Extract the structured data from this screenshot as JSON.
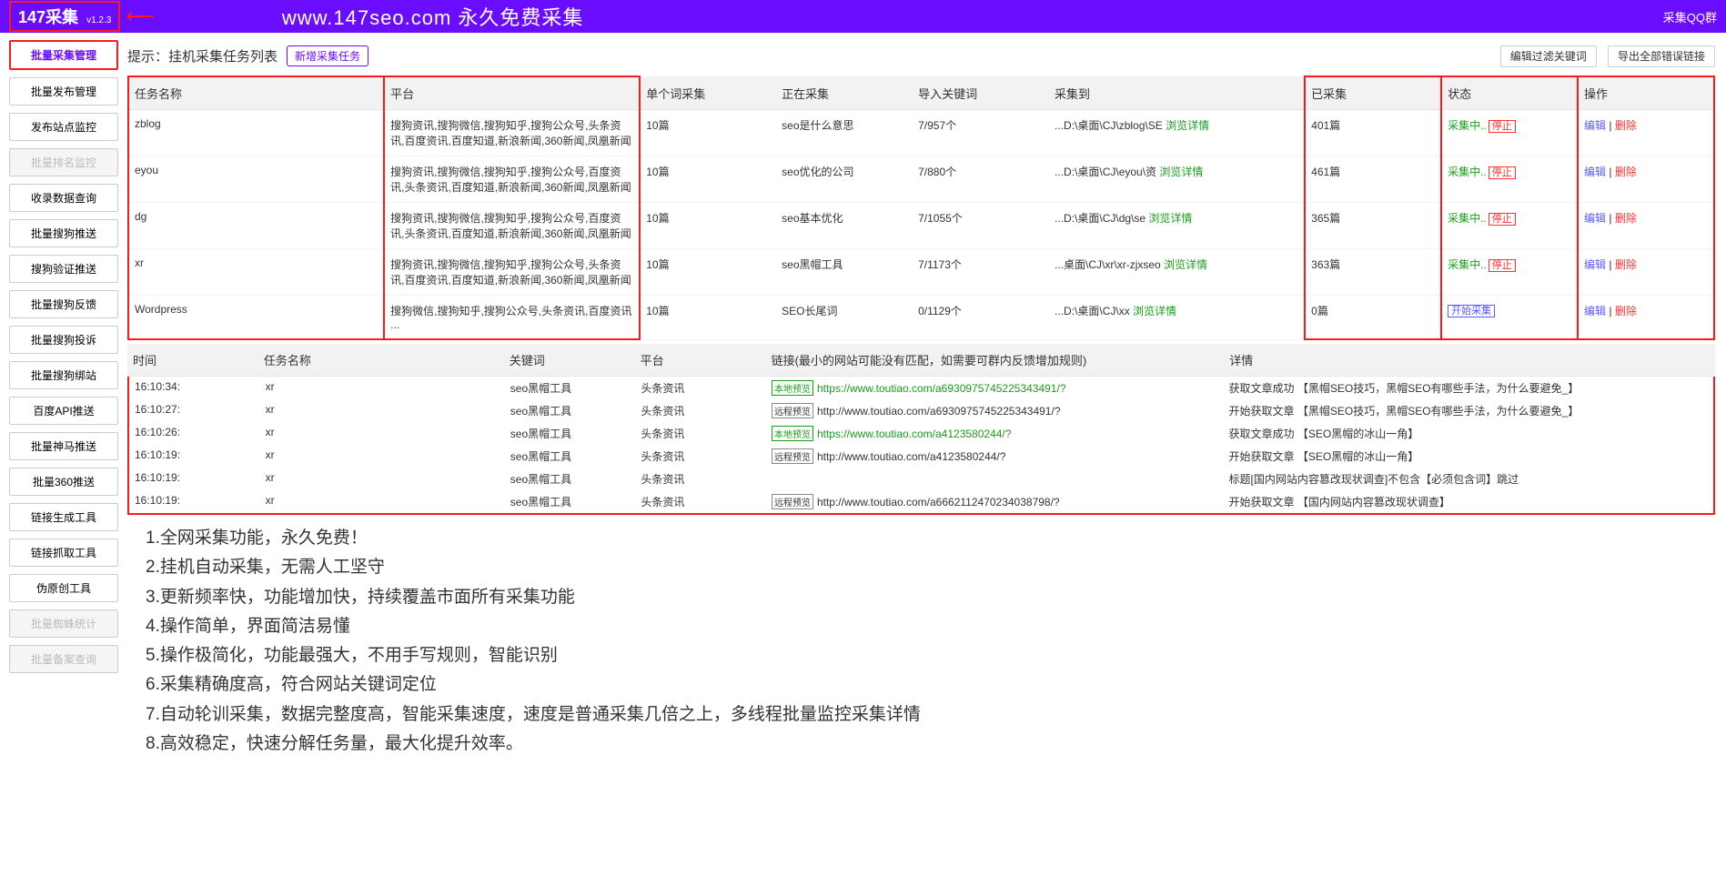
{
  "header": {
    "logo": "147采集",
    "version": "v1.2.3",
    "title": "www.147seo.com   永久免费采集",
    "qq": "采集QQ群"
  },
  "sidebar": [
    {
      "label": "批量采集管理",
      "cls": "active"
    },
    {
      "label": "批量发布管理",
      "cls": ""
    },
    {
      "label": "发布站点监控",
      "cls": ""
    },
    {
      "label": "批量排名监控",
      "cls": "disabled"
    },
    {
      "label": "收录数据查询",
      "cls": ""
    },
    {
      "label": "批量搜狗推送",
      "cls": ""
    },
    {
      "label": "搜狗验证推送",
      "cls": ""
    },
    {
      "label": "批量搜狗反馈",
      "cls": ""
    },
    {
      "label": "批量搜狗投诉",
      "cls": ""
    },
    {
      "label": "批量搜狗绑站",
      "cls": ""
    },
    {
      "label": "百度API推送",
      "cls": ""
    },
    {
      "label": "批量神马推送",
      "cls": ""
    },
    {
      "label": "批量360推送",
      "cls": ""
    },
    {
      "label": "链接生成工具",
      "cls": ""
    },
    {
      "label": "链接抓取工具",
      "cls": ""
    },
    {
      "label": "伪原创工具",
      "cls": ""
    },
    {
      "label": "批量蜘蛛统计",
      "cls": "disabled"
    },
    {
      "label": "批量备案查询",
      "cls": "disabled"
    }
  ],
  "hint": {
    "text": "提示：挂机采集任务列表",
    "newBtn": "新增采集任务",
    "filterBtn": "编辑过滤关键词",
    "exportBtn": "导出全部错误链接"
  },
  "taskCols": [
    "任务名称",
    "平台",
    "单个词采集",
    "正在采集",
    "导入关键词",
    "采集到",
    "已采集",
    "状态",
    "操作"
  ],
  "tasks": [
    {
      "name": "zblog",
      "plat": "搜狗资讯,搜狗微信,搜狗知乎,搜狗公众号,头条资讯,百度资讯,百度知道,新浪新闻,360新闻,凤凰新闻",
      "single": "10篇",
      "now": "seo是什么意思",
      "import": "7/957个",
      "to": "...D:\\桌面\\CJ\\zblog\\SE",
      "toLink": "浏览详情",
      "done": "401篇",
      "stat": "采集中..",
      "statBtn": "停止",
      "edit": "编辑",
      "del": "删除"
    },
    {
      "name": "eyou",
      "plat": "搜狗资讯,搜狗微信,搜狗知乎,搜狗公众号,百度资讯,头条资讯,百度知道,新浪新闻,360新闻,凤凰新闻",
      "single": "10篇",
      "now": "seo优化的公司",
      "import": "7/880个",
      "to": "...D:\\桌面\\CJ\\eyou\\资",
      "toLink": "浏览详情",
      "done": "461篇",
      "stat": "采集中..",
      "statBtn": "停止",
      "edit": "编辑",
      "del": "删除"
    },
    {
      "name": "dg",
      "plat": "搜狗资讯,搜狗微信,搜狗知乎,搜狗公众号,百度资讯,头条资讯,百度知道,新浪新闻,360新闻,凤凰新闻",
      "single": "10篇",
      "now": "seo基本优化",
      "import": "7/1055个",
      "to": "...D:\\桌面\\CJ\\dg\\se",
      "toLink": "浏览详情",
      "done": "365篇",
      "stat": "采集中..",
      "statBtn": "停止",
      "edit": "编辑",
      "del": "删除"
    },
    {
      "name": "xr",
      "plat": "搜狗资讯,搜狗微信,搜狗知乎,搜狗公众号,头条资讯,百度资讯,百度知道,新浪新闻,360新闻,凤凰新闻",
      "single": "10篇",
      "now": "seo黑帽工具",
      "import": "7/1173个",
      "to": "...桌面\\CJ\\xr\\xr-zjxseo",
      "toLink": "浏览详情",
      "done": "363篇",
      "stat": "采集中..",
      "statBtn": "停止",
      "edit": "编辑",
      "del": "删除"
    },
    {
      "name": "Wordpress",
      "plat": "搜狗微信,搜狗知乎,搜狗公众号,头条资讯,百度资讯 ...",
      "single": "10篇",
      "now": "SEO长尾词",
      "import": "0/1129个",
      "to": "...D:\\桌面\\CJ\\xx",
      "toLink": "浏览详情",
      "done": "0篇",
      "stat": "",
      "statBtn": "开始采集",
      "statBlue": true,
      "edit": "编辑",
      "del": "删除"
    }
  ],
  "logCols": [
    "时间",
    "任务名称",
    "关键词",
    "平台",
    "链接(最小的网站可能没有匹配，如需要可群内反馈增加规则)",
    "详情"
  ],
  "logs": [
    {
      "time": "16:10:34:",
      "name": "xr",
      "kw": "seo黑帽工具",
      "plat": "头条资讯",
      "tag": "本地预览",
      "tagCls": "green-tag",
      "link": "https://www.toutiao.com/a6930975745225343491/?",
      "linkCls": "green",
      "detail": "获取文章成功 【黑帽SEO技巧，黑帽SEO有哪些手法，为什么要避免_】"
    },
    {
      "time": "16:10:27:",
      "name": "xr",
      "kw": "seo黑帽工具",
      "plat": "头条资讯",
      "tag": "远程预览",
      "tagCls": "",
      "link": "http://www.toutiao.com/a6930975745225343491/?",
      "linkCls": "",
      "detail": "开始获取文章 【黑帽SEO技巧，黑帽SEO有哪些手法，为什么要避免_】"
    },
    {
      "time": "16:10:26:",
      "name": "xr",
      "kw": "seo黑帽工具",
      "plat": "头条资讯",
      "tag": "本地预览",
      "tagCls": "green-tag",
      "link": "https://www.toutiao.com/a4123580244/?",
      "linkCls": "green",
      "detail": "获取文章成功 【SEO黑帽的冰山一角】"
    },
    {
      "time": "16:10:19:",
      "name": "xr",
      "kw": "seo黑帽工具",
      "plat": "头条资讯",
      "tag": "远程预览",
      "tagCls": "",
      "link": "http://www.toutiao.com/a4123580244/?",
      "linkCls": "",
      "detail": "开始获取文章 【SEO黑帽的冰山一角】"
    },
    {
      "time": "16:10:19:",
      "name": "xr",
      "kw": "seo黑帽工具",
      "plat": "头条资讯",
      "tag": "",
      "tagCls": "",
      "link": "",
      "linkCls": "",
      "detail": "标题[国内网站内容篡改现状调查]不包含【必须包含词】跳过"
    },
    {
      "time": "16:10:19:",
      "name": "xr",
      "kw": "seo黑帽工具",
      "plat": "头条资讯",
      "tag": "远程预览",
      "tagCls": "",
      "link": "http://www.toutiao.com/a6662112470234038798/?",
      "linkCls": "",
      "detail": "开始获取文章 【国内网站内容篡改现状调查】"
    }
  ],
  "features": [
    "1.全网采集功能，永久免费！",
    "2.挂机自动采集，无需人工坚守",
    "3.更新频率快，功能增加快，持续覆盖市面所有采集功能",
    "4.操作简单，界面简洁易懂",
    "5.操作极简化，功能最强大，不用手写规则，智能识别",
    "6.采集精确度高，符合网站关键词定位",
    "7.自动轮训采集，数据完整度高，智能采集速度，速度是普通采集几倍之上，多线程批量监控采集详情",
    "8.高效稳定，快速分解任务量，最大化提升效率。"
  ]
}
